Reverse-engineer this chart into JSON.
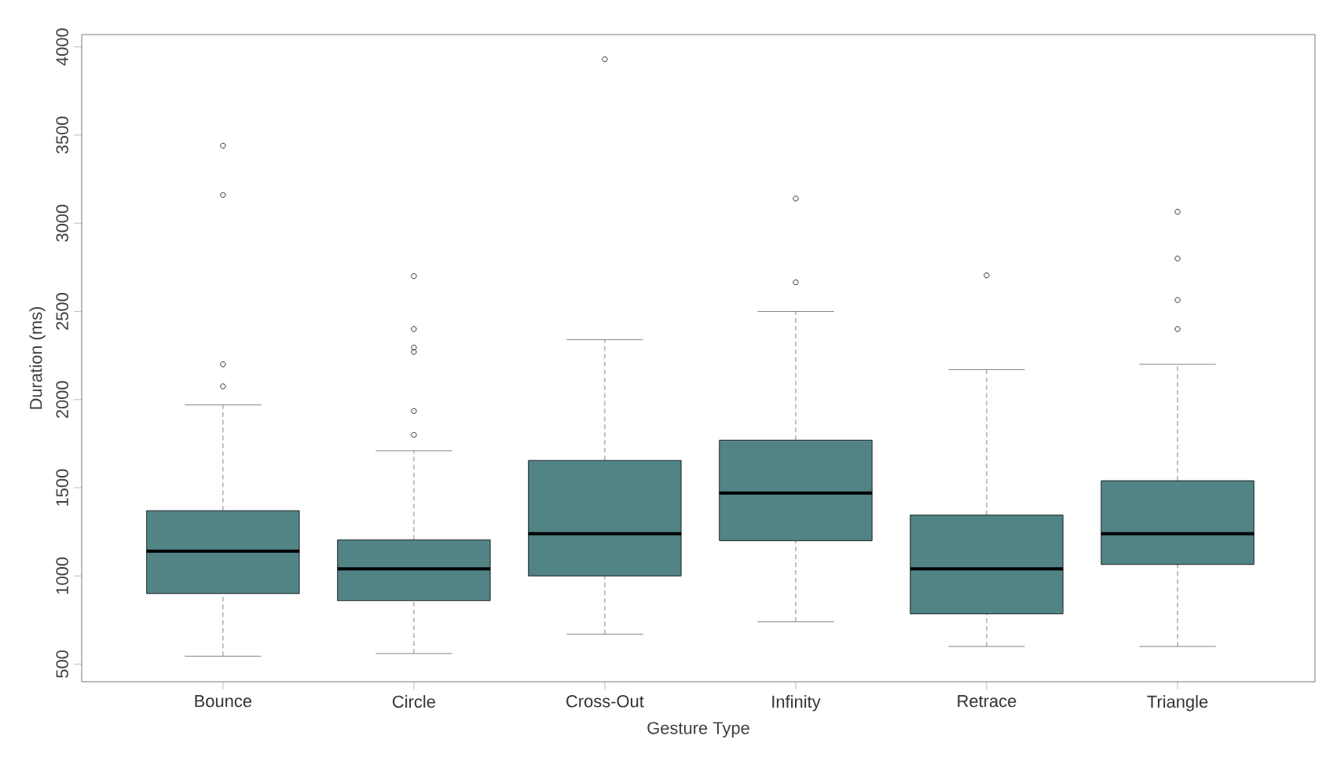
{
  "chart_data": {
    "type": "box",
    "xlabel": "Gesture Type",
    "ylabel": "Duration (ms)",
    "categories": [
      "Bounce",
      "Circle",
      "Cross-Out",
      "Infinity",
      "Retrace",
      "Triangle"
    ],
    "color": "#528486",
    "marker": "circle",
    "boxes": [
      {
        "low": 545,
        "q1": 900,
        "median": 1140,
        "q3": 1370,
        "high": 1970,
        "outliers": [
          3440,
          3160,
          2200,
          2075
        ]
      },
      {
        "low": 560,
        "q1": 860,
        "median": 1040,
        "q3": 1205,
        "high": 1710,
        "outliers": [
          2700,
          2400,
          2295,
          2270,
          1935,
          1800
        ]
      },
      {
        "low": 670,
        "q1": 1000,
        "median": 1240,
        "q3": 1655,
        "high": 2340,
        "outliers": [
          3930
        ]
      },
      {
        "low": 740,
        "q1": 1200,
        "median": 1470,
        "q3": 1770,
        "high": 2500,
        "outliers": [
          3140,
          2665
        ]
      },
      {
        "low": 600,
        "q1": 785,
        "median": 1040,
        "q3": 1345,
        "high": 2170,
        "outliers": [
          2705
        ]
      },
      {
        "low": 600,
        "q1": 1065,
        "median": 1240,
        "q3": 1540,
        "high": 2200,
        "outliers": [
          3065,
          2800,
          2565,
          2400
        ]
      }
    ],
    "ylim": [
      400,
      4070
    ],
    "yticks": [
      500,
      1000,
      1500,
      2000,
      2500,
      3000,
      3500,
      4000
    ]
  }
}
